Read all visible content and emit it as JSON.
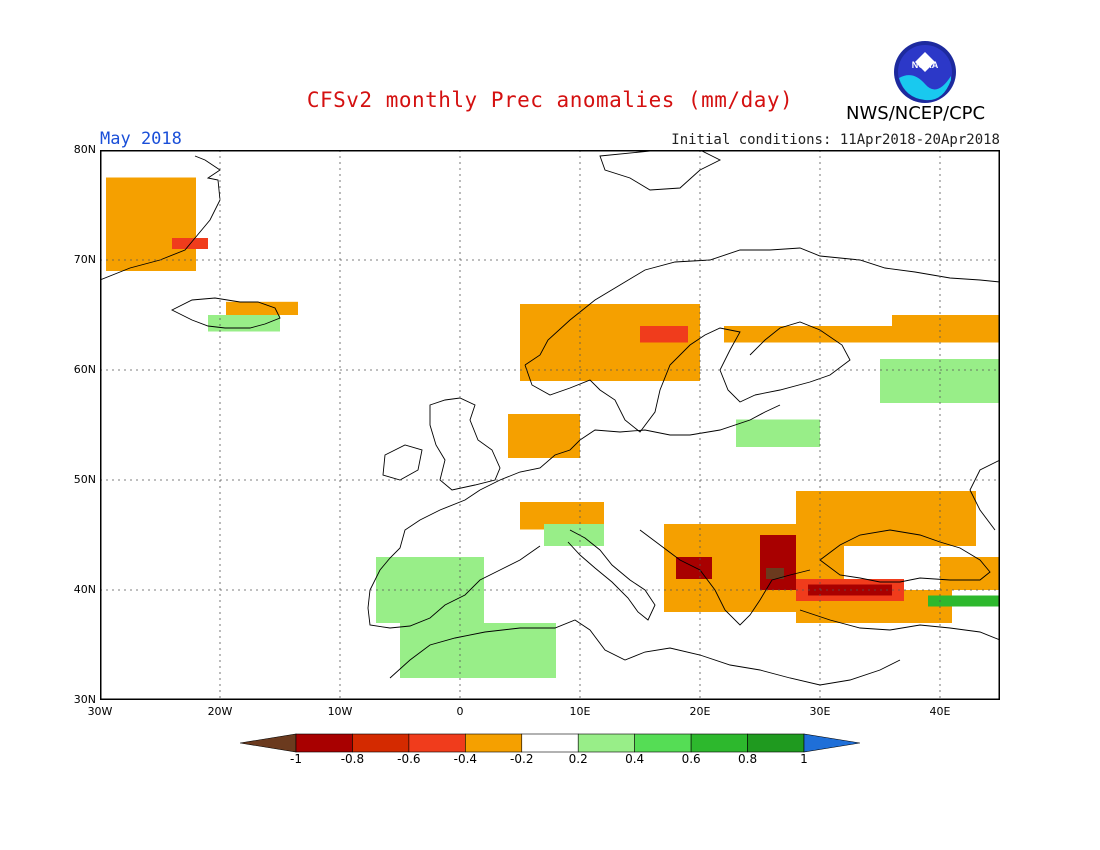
{
  "header": {
    "title": "CFSv2 monthly Prec anomalies (mm/day)",
    "agency": "NWS/NCEP/CPC",
    "logo_text": "NOAA",
    "month": "May 2018",
    "initial_conditions": "Initial conditions: 11Apr2018-20Apr2018"
  },
  "map": {
    "lon_range": [
      -30,
      45
    ],
    "lat_range": [
      30,
      80
    ],
    "lat_labels": [
      "80N",
      "70N",
      "60N",
      "50N",
      "40N",
      "30N"
    ],
    "lon_labels": [
      "30W",
      "20W",
      "10W",
      "0",
      "10E",
      "20E",
      "30E",
      "40E"
    ],
    "grid": "dotted"
  },
  "legend": {
    "labels": [
      "-1",
      "-0.8",
      "-0.6",
      "-0.4",
      "-0.2",
      "0.2",
      "0.4",
      "0.6",
      "0.8",
      "1"
    ],
    "colors": [
      "#6b3a1e",
      "#a80000",
      "#d42a00",
      "#f03c1c",
      "#f5a000",
      "#ffffff",
      "#98ee88",
      "#55dd55",
      "#2db82d",
      "#1f9a1f",
      "#1f6fd8"
    ]
  },
  "anomaly_regions": [
    {
      "level": "-0.4",
      "color": "#f5a000",
      "lon": [
        -29.5,
        -22
      ],
      "lat": [
        69,
        77.5
      ]
    },
    {
      "level": "-0.6",
      "color": "#f03c1c",
      "lon": [
        -24,
        -21
      ],
      "lat": [
        71,
        72
      ]
    },
    {
      "level": "-0.4",
      "color": "#f5a000",
      "lon": [
        -19.5,
        -13.5
      ],
      "lat": [
        65,
        66.2
      ]
    },
    {
      "level": "0.2",
      "color": "#98ee88",
      "lon": [
        -21,
        -15
      ],
      "lat": [
        63.5,
        65
      ]
    },
    {
      "level": "-0.4",
      "color": "#f5a000",
      "lon": [
        5,
        20
      ],
      "lat": [
        59,
        66
      ]
    },
    {
      "level": "-0.6",
      "color": "#f03c1c",
      "lon": [
        15,
        19
      ],
      "lat": [
        62.5,
        64
      ]
    },
    {
      "level": "-0.4",
      "color": "#f5a000",
      "lon": [
        22,
        45
      ],
      "lat": [
        62.5,
        64
      ]
    },
    {
      "level": "-0.4",
      "color": "#f5a000",
      "lon": [
        36,
        45
      ],
      "lat": [
        63,
        65
      ]
    },
    {
      "level": "0.2",
      "color": "#98ee88",
      "lon": [
        35,
        45
      ],
      "lat": [
        57,
        61
      ]
    },
    {
      "level": "0.2",
      "color": "#98ee88",
      "lon": [
        23,
        30
      ],
      "lat": [
        53,
        55.5
      ]
    },
    {
      "level": "-0.4",
      "color": "#f5a000",
      "lon": [
        4,
        10
      ],
      "lat": [
        52,
        56
      ]
    },
    {
      "level": "-0.4",
      "color": "#f5a000",
      "lon": [
        5,
        12
      ],
      "lat": [
        45.5,
        48
      ]
    },
    {
      "level": "0.2",
      "color": "#98ee88",
      "lon": [
        7,
        12
      ],
      "lat": [
        44,
        46
      ]
    },
    {
      "level": "-0.4",
      "color": "#f5a000",
      "lon": [
        17,
        32
      ],
      "lat": [
        38,
        46
      ]
    },
    {
      "level": "-0.4",
      "color": "#f5a000",
      "lon": [
        28,
        43
      ],
      "lat": [
        44,
        49
      ]
    },
    {
      "level": "-0.4",
      "color": "#f5a000",
      "lon": [
        28,
        41
      ],
      "lat": [
        37,
        40
      ]
    },
    {
      "level": "-0.6",
      "color": "#f03c1c",
      "lon": [
        28,
        37
      ],
      "lat": [
        39,
        41
      ]
    },
    {
      "level": "-0.8",
      "color": "#a80000",
      "lon": [
        25,
        28
      ],
      "lat": [
        40,
        45
      ]
    },
    {
      "level": "-0.8",
      "color": "#a80000",
      "lon": [
        18,
        21
      ],
      "lat": [
        41,
        43
      ]
    },
    {
      "level": "-0.8",
      "color": "#a80000",
      "lon": [
        29,
        36
      ],
      "lat": [
        39.5,
        40.5
      ]
    },
    {
      "level": "-1",
      "color": "#6b3a1e",
      "lon": [
        25.5,
        27
      ],
      "lat": [
        41,
        42
      ]
    },
    {
      "level": "-0.4",
      "color": "#f5a000",
      "lon": [
        40,
        45
      ],
      "lat": [
        40,
        43
      ]
    },
    {
      "level": "0.6",
      "color": "#2db82d",
      "lon": [
        39,
        45
      ],
      "lat": [
        38.5,
        39.5
      ]
    },
    {
      "level": "0.4",
      "color": "#55dd55",
      "lon": [
        -7,
        1
      ],
      "lat": [
        38,
        42
      ]
    },
    {
      "level": "0.2",
      "color": "#98ee88",
      "lon": [
        -7,
        2
      ],
      "lat": [
        37,
        43
      ]
    },
    {
      "level": "0.4",
      "color": "#55dd55",
      "lon": [
        -3,
        3
      ],
      "lat": [
        34,
        36.5
      ]
    },
    {
      "level": "0.2",
      "color": "#98ee88",
      "lon": [
        -5,
        8
      ],
      "lat": [
        32,
        37
      ]
    }
  ]
}
